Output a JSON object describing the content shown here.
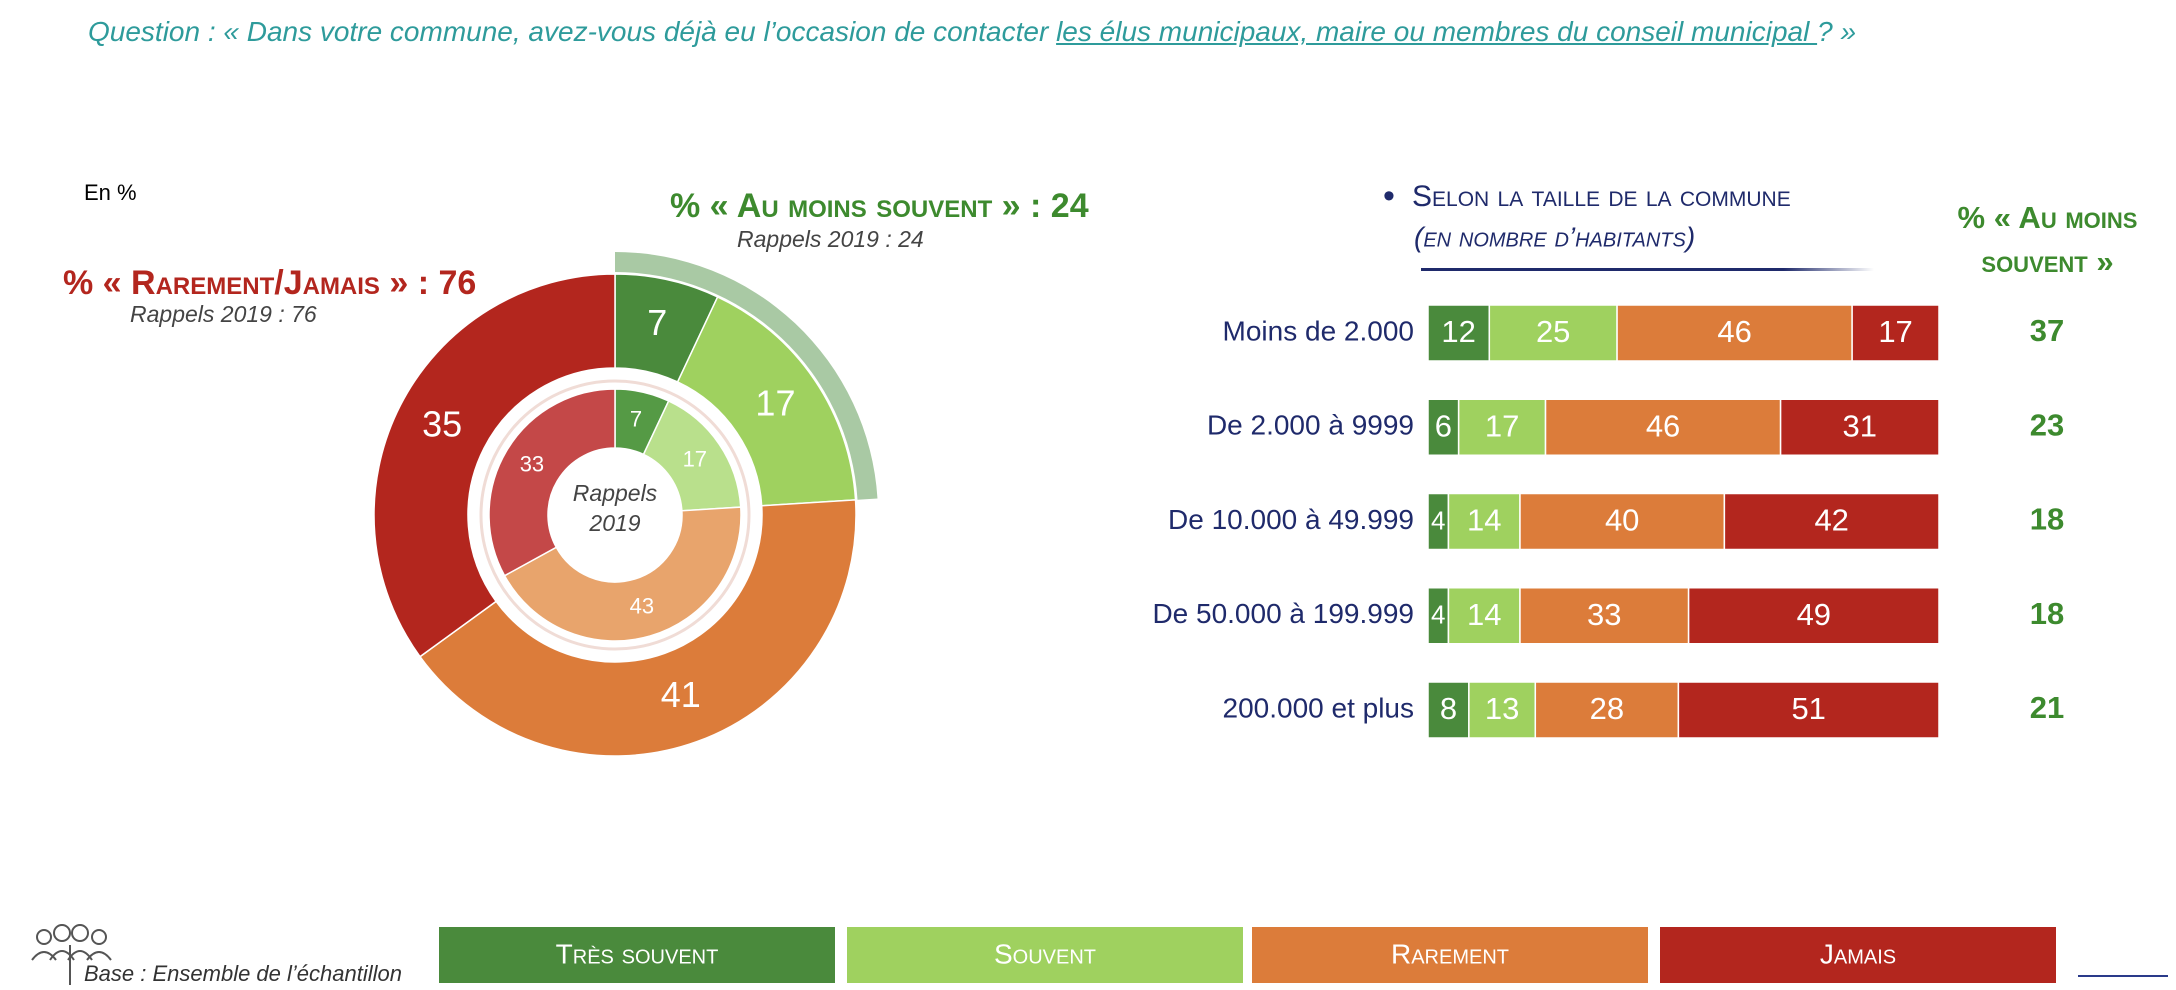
{
  "question": {
    "prefix": "Question : « Dans votre commune, avez-vous déjà eu l’occasion de contacter ",
    "link": "les élus municipaux, maire ou membres du conseil municipal ",
    "suffix": "? »"
  },
  "unit_note": "En %",
  "base_note": "Base : Ensemble de l’échantillon",
  "chart_data": [
    {
      "type": "donut",
      "center_label": "Rappels 2019",
      "annotations": [
        {
          "text": "% « Au moins souvent » : 24",
          "subtext": "Rappels 2019 : 24",
          "color": "#3d8a2e"
        },
        {
          "text": "% « Rarement/Jamais » : 76",
          "subtext": "Rappels 2019 : 76",
          "color": "#b3261e"
        }
      ],
      "highlight_color": "#a9c9a4",
      "series": [
        {
          "values": [
            7,
            17,
            41,
            35
          ],
          "colors": [
            "#4a8a3c",
            "#9fd15f",
            "#dc7c3a",
            "#b3261e"
          ]
        },
        {
          "values": [
            7,
            17,
            43,
            33
          ],
          "colors": [
            "#559a45",
            "#b9e08c",
            "#e8a46c",
            "#c44848"
          ]
        }
      ]
    },
    {
      "type": "bar",
      "horizontal": true,
      "stacked": true,
      "title": "Selon la taille de la commune",
      "subtitle": "(en nombre d’habitants)",
      "categories": [
        "Moins de 2.000",
        "De 2.000 à 9999",
        "De 10.000 à 49.999",
        "De 50.000 à 199.999",
        "200.000 et plus"
      ],
      "series": [
        {
          "name": "Très souvent",
          "color": "#4a8a3c",
          "values": [
            12,
            6,
            4,
            4,
            8
          ]
        },
        {
          "name": "Souvent",
          "color": "#9fd15f",
          "values": [
            25,
            17,
            14,
            14,
            13
          ]
        },
        {
          "name": "Rarement",
          "color": "#dc7c3a",
          "values": [
            46,
            46,
            40,
            33,
            28
          ]
        },
        {
          "name": "Jamais",
          "color": "#b3261e",
          "values": [
            17,
            31,
            42,
            49,
            51
          ]
        }
      ],
      "totals": {
        "label": "% « Au moins souvent »",
        "color": "#3d8a2e",
        "values": [
          37,
          23,
          18,
          18,
          21
        ]
      }
    }
  ]
}
